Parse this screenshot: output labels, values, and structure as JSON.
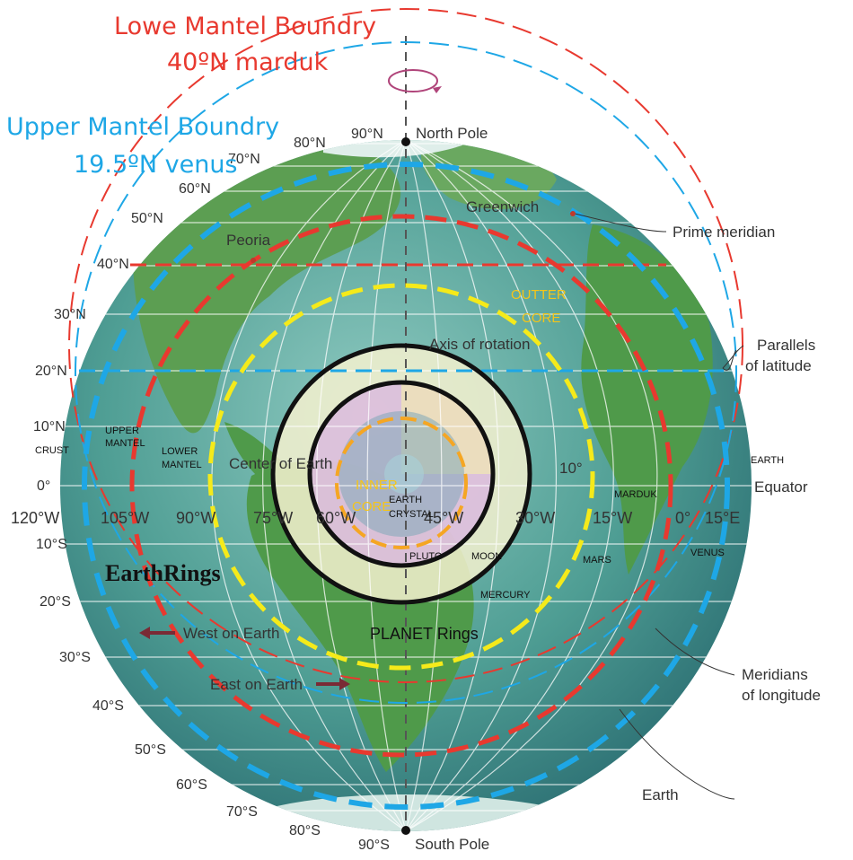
{
  "title_lower_mantel": "Lowe Mantel Boundry",
  "title_lower_mantel_sub": "40ºN marduk",
  "title_upper_mantel": "Upper Mantel Boundry",
  "title_upper_mantel_sub": "19.5ºN venus",
  "brand": "EarthRings",
  "planet_rings_label": "PLANET Rings",
  "callouts": {
    "north_pole": "North Pole",
    "south_pole": "South Pole",
    "greenwich": "Greenwich",
    "prime_meridian": "Prime meridian",
    "peoria": "Peoria",
    "axis": "Axis of rotation",
    "parallels_1": "Parallels",
    "parallels_2": "of latitude",
    "center": "Center of Earth",
    "equator": "Equator",
    "west": "West on Earth",
    "east": "East on Earth",
    "meridians_1": "Meridians",
    "meridians_2": "of longitude",
    "earth": "Earth",
    "ten_deg": "10°"
  },
  "layers": {
    "crust": "CRUST",
    "upper_mantel_1": "UPPER",
    "upper_mantel_2": "MANTEL",
    "lower_mantel_1": "LOWER",
    "lower_mantel_2": "MANTEL",
    "outter_core_1": "OUTTER",
    "outter_core_2": "CORE",
    "inner_core_1": "INNER",
    "inner_core_2": "CORE",
    "earth_crystal_1": "EARTH",
    "earth_crystal_2": "CRYSTAL"
  },
  "planets": {
    "earth": "EARTH",
    "marduk": "MARDUK",
    "venus": "VENUS",
    "mars": "MARS",
    "moon": "MOON",
    "pluto": "PLUTO",
    "mercury": "MERCURY"
  },
  "lat_labels_n": [
    "90°N",
    "80°N",
    "70°N",
    "60°N",
    "50°N",
    "40°N",
    "30°N",
    "20°N",
    "10°N",
    "0°"
  ],
  "lat_labels_s": [
    "10°S",
    "20°S",
    "30°S",
    "40°S",
    "50°S",
    "60°S",
    "70°S",
    "80°S",
    "90°S"
  ],
  "lon_labels": [
    "120°W",
    "105°W",
    "90°W",
    "75°W",
    "60°W",
    "45°W",
    "30°W",
    "15°W",
    "0°",
    "15°E"
  ],
  "colors": {
    "ocean": "#3e8f8a",
    "land": "#4f9a4a",
    "red": "#e8392f",
    "blue": "#1ea7e6",
    "yellow": "#f5ea1a",
    "orange": "#f5a623",
    "black": "#111111",
    "arrow": "#7a2a35"
  }
}
